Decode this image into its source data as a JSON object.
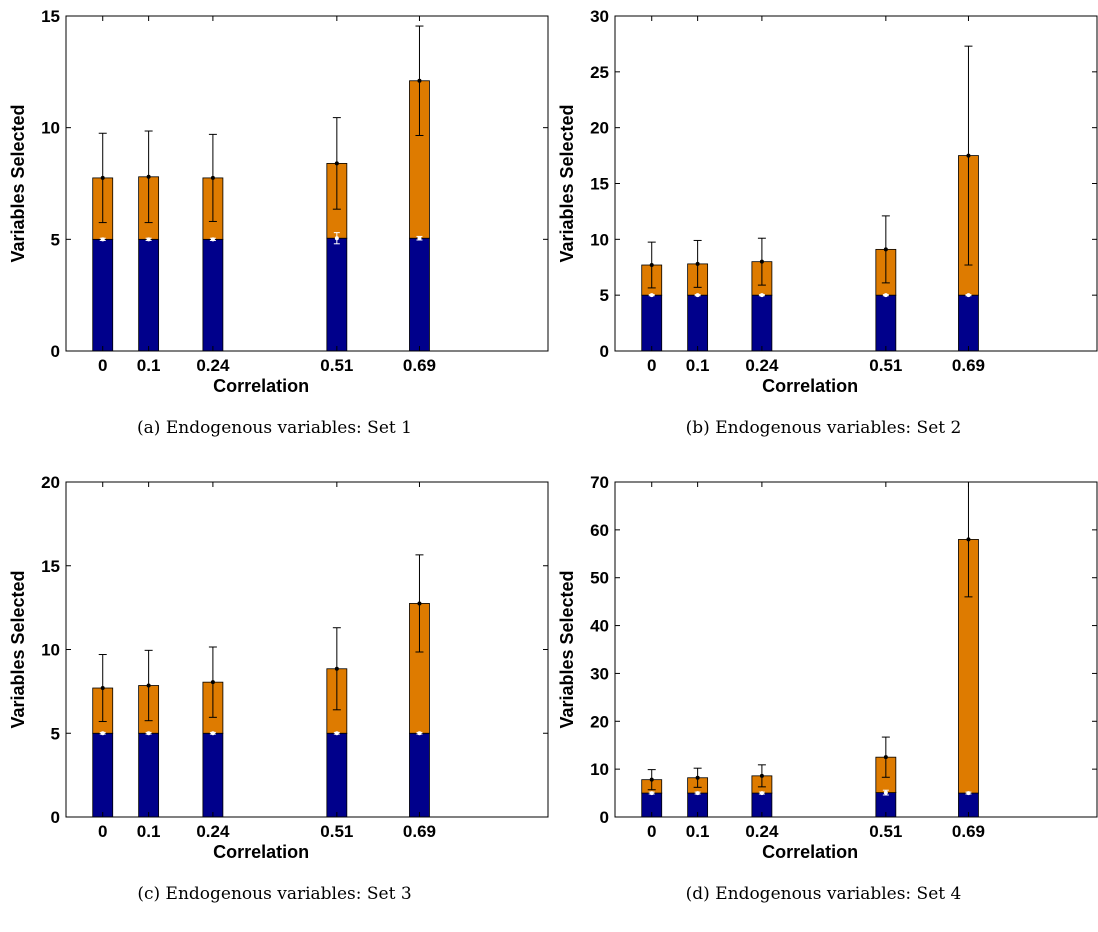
{
  "colors": {
    "signal": "#00008B",
    "noise": "#DE7B00",
    "axis": "#000000"
  },
  "chart_data": [
    {
      "type": "bar",
      "caption": "(a) Endogenous variables: Set 1",
      "categories": [
        "0",
        "0.1",
        "0.24",
        "0.51",
        "0.69"
      ],
      "x": [
        0,
        0.1,
        0.24,
        0.51,
        0.69
      ],
      "xlim": [
        -0.08,
        0.97
      ],
      "ylim": [
        0,
        15
      ],
      "yticks": [
        0,
        5,
        10,
        15
      ],
      "xlabel": "Correlation",
      "ylabel": "Variables Selected",
      "series": [
        {
          "values": [
            5.0,
            5.0,
            5.0,
            5.05,
            5.05
          ],
          "err": [
            0.05,
            0.05,
            0.05,
            0.25,
            0.08
          ]
        },
        {
          "totals": [
            7.75,
            7.8,
            7.75,
            8.4,
            12.1
          ],
          "err": [
            2.0,
            2.05,
            1.95,
            2.05,
            2.45
          ]
        }
      ]
    },
    {
      "type": "bar",
      "caption": "(b) Endogenous variables: Set 2",
      "categories": [
        "0",
        "0.1",
        "0.24",
        "0.51",
        "0.69"
      ],
      "x": [
        0,
        0.1,
        0.24,
        0.51,
        0.69
      ],
      "xlim": [
        -0.08,
        0.97
      ],
      "ylim": [
        0,
        30
      ],
      "yticks": [
        0,
        5,
        10,
        15,
        20,
        25,
        30
      ],
      "xlabel": "Correlation",
      "ylabel": "Variables Selected",
      "series": [
        {
          "values": [
            5.0,
            5.0,
            5.0,
            5.0,
            5.0
          ],
          "err": [
            0.05,
            0.05,
            0.05,
            0.05,
            0.05
          ]
        },
        {
          "totals": [
            7.7,
            7.8,
            8.0,
            9.1,
            17.5
          ],
          "err": [
            2.05,
            2.1,
            2.1,
            3.0,
            9.8
          ]
        }
      ]
    },
    {
      "type": "bar",
      "caption": "(c) Endogenous variables: Set 3",
      "categories": [
        "0",
        "0.1",
        "0.24",
        "0.51",
        "0.69"
      ],
      "x": [
        0,
        0.1,
        0.24,
        0.51,
        0.69
      ],
      "xlim": [
        -0.08,
        0.97
      ],
      "ylim": [
        0,
        20
      ],
      "yticks": [
        0,
        5,
        10,
        15,
        20
      ],
      "xlabel": "Correlation",
      "ylabel": "Variables Selected",
      "series": [
        {
          "values": [
            5.0,
            5.0,
            5.0,
            5.0,
            5.0
          ],
          "err": [
            0.05,
            0.05,
            0.05,
            0.05,
            0.05
          ]
        },
        {
          "totals": [
            7.7,
            7.85,
            8.05,
            8.85,
            12.75
          ],
          "err": [
            2.0,
            2.1,
            2.1,
            2.45,
            2.9
          ]
        }
      ]
    },
    {
      "type": "bar",
      "caption": "(d) Endogenous variables: Set 4",
      "categories": [
        "0",
        "0.1",
        "0.24",
        "0.51",
        "0.69"
      ],
      "x": [
        0,
        0.1,
        0.24,
        0.51,
        0.69
      ],
      "xlim": [
        -0.08,
        0.97
      ],
      "ylim": [
        0,
        70
      ],
      "yticks": [
        0,
        10,
        20,
        30,
        40,
        50,
        60,
        70
      ],
      "xlabel": "Correlation",
      "ylabel": "Variables Selected",
      "series": [
        {
          "values": [
            5.0,
            5.0,
            5.0,
            5.1,
            5.0
          ],
          "err": [
            0.2,
            0.2,
            0.2,
            0.5,
            0.2
          ]
        },
        {
          "totals": [
            7.8,
            8.2,
            8.6,
            12.5,
            58.0
          ],
          "err": [
            2.1,
            2.0,
            2.3,
            4.2,
            12.0
          ]
        }
      ]
    }
  ]
}
